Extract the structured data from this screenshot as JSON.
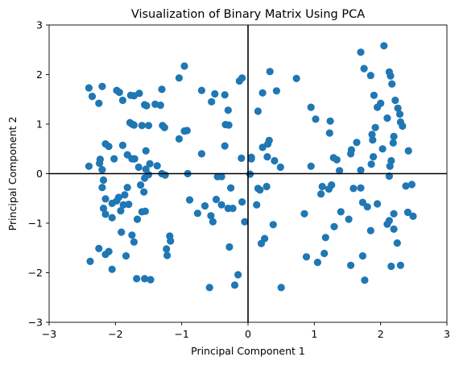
{
  "chart_data": {
    "type": "scatter",
    "title": "Visualization of Binary Matrix Using PCA",
    "xlabel": "Principal Component 1",
    "ylabel": "Principal Component 2",
    "xlim": [
      -3,
      3
    ],
    "ylim": [
      -3,
      3
    ],
    "x_ticks": [
      "−3",
      "−2",
      "−1",
      "0",
      "1",
      "2",
      "3"
    ],
    "y_ticks": [
      "−3",
      "−2",
      "−1",
      "0",
      "1",
      "2",
      "3"
    ],
    "reference_lines": [
      "x = 0",
      "y = 0"
    ],
    "grid": false,
    "marker_color": "#1f77b4",
    "points": [
      [
        -2.4,
        1.73
      ],
      [
        -2.35,
        1.56
      ],
      [
        -2.25,
        1.42
      ],
      [
        -2.2,
        1.76
      ],
      [
        -2.18,
        -0.13
      ],
      [
        -2.4,
        0.15
      ],
      [
        -2.24,
        0.21
      ],
      [
        -2.23,
        0.29
      ],
      [
        -2.2,
        0.08
      ],
      [
        -2.15,
        0.6
      ],
      [
        -2.1,
        0.55
      ],
      [
        -2.02,
        0.3
      ],
      [
        -1.98,
        1.68
      ],
      [
        -1.94,
        1.64
      ],
      [
        -1.89,
        1.48
      ],
      [
        -1.77,
        1.58
      ],
      [
        -1.72,
        1.57
      ],
      [
        -1.64,
        1.62
      ],
      [
        -1.56,
        1.39
      ],
      [
        -1.53,
        1.37
      ],
      [
        -1.4,
        1.4
      ],
      [
        -1.3,
        1.7
      ],
      [
        -1.32,
        1.38
      ],
      [
        -1.04,
        1.93
      ],
      [
        -0.96,
        2.17
      ],
      [
        -0.7,
        1.68
      ],
      [
        -0.55,
        1.45
      ],
      [
        -0.5,
        1.61
      ],
      [
        -0.35,
        1.59
      ],
      [
        -0.3,
        1.28
      ],
      [
        -0.13,
        1.87
      ],
      [
        -0.09,
        1.93
      ],
      [
        0.22,
        1.63
      ],
      [
        0.33,
        2.06
      ],
      [
        0.43,
        1.67
      ],
      [
        0.73,
        1.92
      ],
      [
        -1.78,
        1.03
      ],
      [
        -1.75,
        1.0
      ],
      [
        -1.72,
        0.98
      ],
      [
        -1.6,
        0.97
      ],
      [
        -1.5,
        0.97
      ],
      [
        -1.29,
        0.97
      ],
      [
        -1.26,
        0.93
      ],
      [
        -0.96,
        0.86
      ],
      [
        -0.92,
        0.87
      ],
      [
        -1.04,
        0.7
      ],
      [
        -0.34,
        0.99
      ],
      [
        -0.29,
        0.98
      ],
      [
        0.15,
        1.26
      ],
      [
        0.22,
        0.53
      ],
      [
        0.3,
        0.6
      ],
      [
        0.32,
        0.67
      ],
      [
        -1.89,
        0.57
      ],
      [
        -1.82,
        0.38
      ],
      [
        -1.75,
        0.3
      ],
      [
        -1.71,
        0.3
      ],
      [
        -1.65,
        0.13
      ],
      [
        -1.54,
        0.46
      ],
      [
        -1.54,
        0.09
      ],
      [
        -1.48,
        0.2
      ],
      [
        -1.5,
        -0.02
      ],
      [
        -1.37,
        0.16
      ],
      [
        -1.3,
        0.0
      ],
      [
        -1.25,
        -0.03
      ],
      [
        -0.91,
        0.0
      ],
      [
        -0.7,
        0.4
      ],
      [
        -0.46,
        -0.06
      ],
      [
        -0.35,
        0.56
      ],
      [
        -0.4,
        -0.06
      ],
      [
        -0.1,
        0.31
      ],
      [
        0.05,
        0.33
      ],
      [
        0.05,
        0.3
      ],
      [
        0.03,
        -0.01
      ],
      [
        0.15,
        -0.3
      ],
      [
        0.18,
        -0.33
      ],
      [
        0.28,
        -0.26
      ],
      [
        0.29,
        0.34
      ],
      [
        0.4,
        0.26
      ],
      [
        0.49,
        0.13
      ],
      [
        0.95,
        0.15
      ],
      [
        -2.2,
        -0.28
      ],
      [
        -2.15,
        -0.51
      ],
      [
        -2.05,
        -0.6
      ],
      [
        -1.95,
        -0.48
      ],
      [
        -1.86,
        -0.43
      ],
      [
        -1.8,
        -0.62
      ],
      [
        -1.82,
        -0.28
      ],
      [
        -1.62,
        -0.23
      ],
      [
        -1.56,
        -0.09
      ],
      [
        -1.57,
        -0.37
      ],
      [
        -0.88,
        -0.53
      ],
      [
        -0.76,
        -0.8
      ],
      [
        -0.65,
        -0.65
      ],
      [
        -0.56,
        -0.85
      ],
      [
        -0.53,
        -0.97
      ],
      [
        -0.48,
        -0.52
      ],
      [
        -0.4,
        -0.63
      ],
      [
        -0.3,
        -0.7
      ],
      [
        -0.26,
        -0.29
      ],
      [
        -0.23,
        -0.7
      ],
      [
        -0.09,
        -0.57
      ],
      [
        -0.05,
        -0.97
      ],
      [
        0.13,
        -0.63
      ],
      [
        -2.18,
        -0.7
      ],
      [
        -2.15,
        -0.82
      ],
      [
        -2.05,
        -0.89
      ],
      [
        -1.98,
        -0.55
      ],
      [
        -1.92,
        -0.75
      ],
      [
        -1.91,
        -1.18
      ],
      [
        -1.88,
        -0.63
      ],
      [
        -1.75,
        -1.24
      ],
      [
        -1.72,
        -1.38
      ],
      [
        -1.67,
        -0.92
      ],
      [
        -1.6,
        -0.77
      ],
      [
        -1.55,
        -0.76
      ],
      [
        -1.18,
        -1.26
      ],
      [
        -1.17,
        -1.36
      ],
      [
        -1.23,
        -1.52
      ],
      [
        -1.22,
        -1.65
      ],
      [
        -0.58,
        -2.3
      ],
      [
        -0.2,
        -2.25
      ],
      [
        -0.15,
        -2.04
      ],
      [
        -0.28,
        -1.48
      ],
      [
        0.25,
        -1.31
      ],
      [
        0.2,
        -1.41
      ],
      [
        0.38,
        -1.03
      ],
      [
        0.5,
        -2.3
      ],
      [
        0.85,
        -0.81
      ],
      [
        0.88,
        -1.68
      ],
      [
        1.05,
        -1.79
      ],
      [
        1.1,
        -0.41
      ],
      [
        1.12,
        -0.26
      ],
      [
        1.15,
        -1.61
      ],
      [
        1.17,
        -1.29
      ],
      [
        1.22,
        -0.31
      ],
      [
        1.26,
        -0.23
      ],
      [
        1.3,
        -1.07
      ],
      [
        1.4,
        -0.77
      ],
      [
        1.52,
        -0.92
      ],
      [
        1.55,
        -1.85
      ],
      [
        1.59,
        -0.3
      ],
      [
        1.7,
        -0.29
      ],
      [
        1.73,
        -0.58
      ],
      [
        1.73,
        -1.66
      ],
      [
        1.76,
        -2.15
      ],
      [
        1.8,
        -0.67
      ],
      [
        1.85,
        -1.15
      ],
      [
        1.95,
        -0.61
      ],
      [
        2.1,
        -1.02
      ],
      [
        2.13,
        -0.95
      ],
      [
        2.16,
        -1.87
      ],
      [
        2.2,
        -1.12
      ],
      [
        2.2,
        -0.81
      ],
      [
        2.25,
        -1.4
      ],
      [
        2.3,
        -1.85
      ],
      [
        2.38,
        -0.25
      ],
      [
        2.41,
        -0.78
      ],
      [
        2.47,
        -0.22
      ],
      [
        2.49,
        -0.86
      ],
      [
        -2.25,
        -1.51
      ],
      [
        -2.38,
        -1.77
      ],
      [
        -2.15,
        -1.63
      ],
      [
        -2.1,
        -1.57
      ],
      [
        -2.05,
        -1.93
      ],
      [
        -1.84,
        -1.66
      ],
      [
        -1.68,
        -2.12
      ],
      [
        -1.56,
        -2.12
      ],
      [
        -1.47,
        -2.14
      ],
      [
        0.95,
        1.34
      ],
      [
        1.02,
        1.1
      ],
      [
        1.24,
        1.06
      ],
      [
        1.23,
        0.82
      ],
      [
        1.29,
        0.32
      ],
      [
        1.34,
        0.28
      ],
      [
        1.38,
        0.06
      ],
      [
        1.56,
        0.48
      ],
      [
        1.64,
        0.63
      ],
      [
        1.7,
        2.45
      ],
      [
        1.75,
        2.12
      ],
      [
        1.85,
        1.98
      ],
      [
        1.87,
        0.79
      ],
      [
        1.9,
        1.58
      ],
      [
        1.95,
        1.34
      ],
      [
        2.0,
        1.42
      ],
      [
        2.05,
        2.58
      ],
      [
        2.1,
        1.12
      ],
      [
        2.15,
        1.97
      ],
      [
        2.17,
        1.81
      ],
      [
        2.22,
        1.48
      ],
      [
        2.26,
        1.32
      ],
      [
        2.29,
        1.2
      ],
      [
        2.3,
        1.04
      ],
      [
        2.33,
        0.96
      ],
      [
        2.2,
        0.75
      ],
      [
        2.19,
        0.62
      ],
      [
        2.42,
        0.46
      ],
      [
        2.16,
        0.26
      ],
      [
        2.14,
        0.15
      ],
      [
        1.89,
        0.34
      ],
      [
        1.86,
        0.19
      ],
      [
        1.92,
        0.93
      ],
      [
        1.88,
        0.68
      ],
      [
        2.13,
        2.05
      ],
      [
        2.13,
        -0.05
      ],
      [
        1.7,
        0.07
      ],
      [
        1.55,
        0.4
      ],
      [
        2.03,
        0.5
      ]
    ]
  }
}
